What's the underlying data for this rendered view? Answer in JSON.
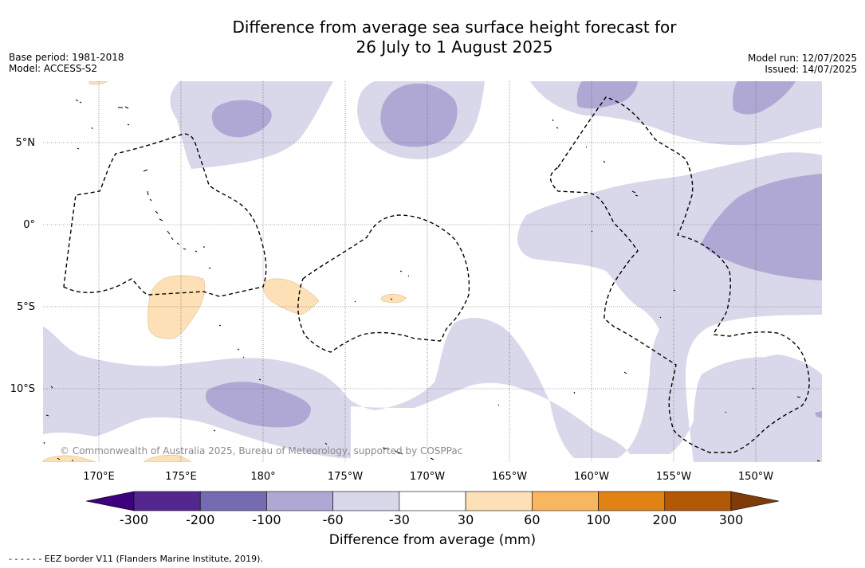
{
  "title_line1": "Difference from average sea surface height forecast for",
  "title_line2": "26 July to 1 August 2025",
  "meta_left": {
    "base_period": "Base period: 1981-2018",
    "model": "Model: ACCESS-S2"
  },
  "meta_right": {
    "model_run": "Model run: 12/07/2025",
    "issued": "Issued: 14/07/2025"
  },
  "lat_labels": [
    "5°N",
    "0°",
    "5°S",
    "10°S"
  ],
  "lon_labels": [
    "170°E",
    "175°E",
    "180°",
    "175°W",
    "170°W",
    "165°W",
    "160°W",
    "155°W",
    "150°W"
  ],
  "copyright": "© Commonwealth of Australia 2025, Bureau of Meteorology, supported by COSPPac",
  "colorbar": {
    "label": "Difference from average (mm)",
    "ticks": [
      "-300",
      "-200",
      "-100",
      "-60",
      "-30",
      "30",
      "60",
      "100",
      "200",
      "300"
    ],
    "colors": [
      "#54278f",
      "#756bb1",
      "#b0a8d4",
      "#d8d8ea",
      "#ffffff",
      "#fde0b6",
      "#f9b660",
      "#e08214",
      "#b35806"
    ],
    "under_color": "#3f007d",
    "over_color": "#7f3b08"
  },
  "legend_note": "- -  - -  - - EEZ border V11 (Flanders Marine Institute, 2019)."
}
